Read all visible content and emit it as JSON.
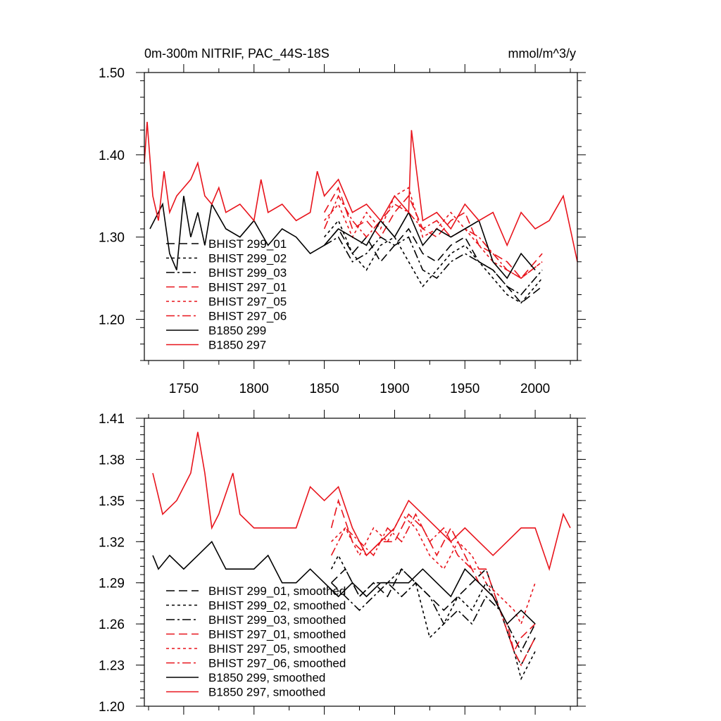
{
  "chart_data": [
    {
      "type": "line",
      "title": "0m-300m NITRIF, PAC_44S-18S",
      "units": "mmol/m^3/y",
      "xlabel": "",
      "ylabel": "",
      "xlim": [
        1722,
        2030
      ],
      "ylim": [
        1.15,
        1.5
      ],
      "xticks": [
        1750,
        1800,
        1850,
        1900,
        1950,
        2000
      ],
      "xtick_labels": [
        "1750",
        "1800",
        "1850",
        "1900",
        "1950",
        "2000"
      ],
      "yticks": [
        1.2,
        1.3,
        1.4,
        1.5
      ],
      "ytick_labels": [
        "1.20",
        "1.30",
        "1.40",
        "1.50"
      ],
      "legend_position": "bottom-left",
      "series": [
        {
          "name": "BHIST 299_01",
          "color": "#000000",
          "dash": "long",
          "x": [
            1850,
            1860,
            1870,
            1880,
            1890,
            1900,
            1910,
            1920,
            1930,
            1940,
            1950,
            1960,
            1970,
            1980,
            1990,
            2005
          ],
          "y": [
            1.29,
            1.31,
            1.28,
            1.3,
            1.27,
            1.29,
            1.31,
            1.28,
            1.27,
            1.29,
            1.3,
            1.27,
            1.26,
            1.24,
            1.22,
            1.24
          ]
        },
        {
          "name": "BHIST 299_02",
          "color": "#000000",
          "dash": "short",
          "x": [
            1850,
            1860,
            1870,
            1880,
            1890,
            1900,
            1910,
            1920,
            1930,
            1940,
            1950,
            1960,
            1970,
            1980,
            1990,
            2005
          ],
          "y": [
            1.3,
            1.32,
            1.28,
            1.26,
            1.29,
            1.3,
            1.27,
            1.24,
            1.26,
            1.28,
            1.29,
            1.27,
            1.25,
            1.23,
            1.22,
            1.25
          ]
        },
        {
          "name": "BHIST 299_03",
          "color": "#000000",
          "dash": "dashdot",
          "x": [
            1850,
            1860,
            1870,
            1880,
            1890,
            1900,
            1910,
            1920,
            1930,
            1940,
            1950,
            1960,
            1970,
            1980,
            1990,
            2005
          ],
          "y": [
            1.29,
            1.3,
            1.27,
            1.28,
            1.3,
            1.29,
            1.3,
            1.26,
            1.25,
            1.27,
            1.28,
            1.27,
            1.26,
            1.24,
            1.23,
            1.26
          ]
        },
        {
          "name": "BHIST 297_01",
          "color": "#e8141c",
          "dash": "long",
          "x": [
            1850,
            1860,
            1870,
            1880,
            1890,
            1900,
            1910,
            1920,
            1930,
            1940,
            1950,
            1960,
            1970,
            1980,
            1990,
            2005
          ],
          "y": [
            1.33,
            1.36,
            1.31,
            1.32,
            1.3,
            1.33,
            1.35,
            1.31,
            1.3,
            1.32,
            1.33,
            1.29,
            1.28,
            1.27,
            1.25,
            1.28
          ]
        },
        {
          "name": "BHIST 297_05",
          "color": "#e8141c",
          "dash": "short",
          "x": [
            1850,
            1860,
            1870,
            1880,
            1890,
            1900,
            1910,
            1920,
            1930,
            1940,
            1950,
            1960,
            1970,
            1980,
            1990,
            2005
          ],
          "y": [
            1.32,
            1.34,
            1.3,
            1.33,
            1.31,
            1.35,
            1.36,
            1.3,
            1.31,
            1.33,
            1.31,
            1.29,
            1.27,
            1.26,
            1.25,
            1.27
          ]
        },
        {
          "name": "BHIST 297_06",
          "color": "#e8141c",
          "dash": "dashdot",
          "x": [
            1850,
            1860,
            1870,
            1880,
            1890,
            1900,
            1910,
            1920,
            1930,
            1940,
            1950,
            1960,
            1970,
            1980,
            1990,
            2005
          ],
          "y": [
            1.31,
            1.35,
            1.32,
            1.3,
            1.32,
            1.34,
            1.33,
            1.31,
            1.32,
            1.3,
            1.31,
            1.3,
            1.28,
            1.26,
            1.25,
            1.27
          ]
        },
        {
          "name": "B1850 299",
          "color": "#000000",
          "dash": "solid",
          "x": [
            1726,
            1735,
            1740,
            1745,
            1750,
            1755,
            1760,
            1765,
            1770,
            1780,
            1790,
            1800,
            1810,
            1820,
            1830,
            1840,
            1850,
            1860,
            1870,
            1880,
            1890,
            1900,
            1910,
            1920,
            1930,
            1940,
            1950,
            1960,
            1970,
            1980,
            1990,
            2000
          ],
          "y": [
            1.31,
            1.34,
            1.28,
            1.26,
            1.35,
            1.3,
            1.33,
            1.29,
            1.34,
            1.31,
            1.3,
            1.32,
            1.29,
            1.31,
            1.3,
            1.28,
            1.29,
            1.31,
            1.3,
            1.29,
            1.32,
            1.3,
            1.33,
            1.29,
            1.31,
            1.3,
            1.31,
            1.32,
            1.27,
            1.25,
            1.28,
            1.26
          ]
        },
        {
          "name": "B1850 297",
          "color": "#e8141c",
          "dash": "solid",
          "x": [
            1722,
            1724,
            1728,
            1732,
            1736,
            1740,
            1745,
            1750,
            1755,
            1760,
            1765,
            1770,
            1775,
            1780,
            1790,
            1800,
            1805,
            1810,
            1820,
            1830,
            1840,
            1845,
            1850,
            1860,
            1870,
            1880,
            1890,
            1900,
            1910,
            1912,
            1920,
            1930,
            1940,
            1950,
            1960,
            1970,
            1980,
            1990,
            2000,
            2010,
            2020,
            2030
          ],
          "y": [
            1.39,
            1.44,
            1.35,
            1.32,
            1.38,
            1.33,
            1.35,
            1.36,
            1.37,
            1.39,
            1.35,
            1.34,
            1.36,
            1.33,
            1.34,
            1.32,
            1.37,
            1.33,
            1.34,
            1.32,
            1.33,
            1.38,
            1.35,
            1.37,
            1.33,
            1.34,
            1.32,
            1.35,
            1.33,
            1.43,
            1.32,
            1.33,
            1.31,
            1.34,
            1.32,
            1.33,
            1.29,
            1.33,
            1.31,
            1.32,
            1.35,
            1.27
          ]
        }
      ]
    },
    {
      "type": "line",
      "title": "",
      "xlabel": "",
      "ylabel": "",
      "xlim": [
        1722,
        2030
      ],
      "ylim": [
        1.2,
        1.41
      ],
      "xticks": [
        1750,
        1800,
        1850,
        1900,
        1950,
        2000
      ],
      "yticks": [
        1.2,
        1.23,
        1.26,
        1.29,
        1.32,
        1.35,
        1.38,
        1.41
      ],
      "ytick_labels": [
        "1.20",
        "1.23",
        "1.26",
        "1.29",
        "1.32",
        "1.35",
        "1.38",
        "1.41"
      ],
      "legend_position": "bottom-left",
      "series": [
        {
          "name": "BHIST 299_01, smoothed",
          "color": "#000000",
          "dash": "long",
          "x": [
            1855,
            1865,
            1875,
            1885,
            1895,
            1905,
            1915,
            1925,
            1935,
            1945,
            1955,
            1965,
            1975,
            1985,
            1990,
            1995,
            2000
          ],
          "y": [
            1.29,
            1.3,
            1.28,
            1.29,
            1.28,
            1.3,
            1.29,
            1.28,
            1.27,
            1.28,
            1.29,
            1.3,
            1.27,
            1.24,
            1.23,
            1.24,
            1.25
          ]
        },
        {
          "name": "BHIST 299_02, smoothed",
          "color": "#000000",
          "dash": "short",
          "x": [
            1855,
            1860,
            1865,
            1875,
            1885,
            1895,
            1905,
            1915,
            1920,
            1925,
            1935,
            1945,
            1955,
            1965,
            1975,
            1985,
            1990,
            1995,
            2000
          ],
          "y": [
            1.3,
            1.31,
            1.3,
            1.28,
            1.29,
            1.29,
            1.3,
            1.29,
            1.27,
            1.25,
            1.26,
            1.28,
            1.27,
            1.29,
            1.27,
            1.24,
            1.22,
            1.23,
            1.24
          ]
        },
        {
          "name": "BHIST 299_03, smoothed",
          "color": "#000000",
          "dash": "dashdot",
          "x": [
            1855,
            1865,
            1875,
            1885,
            1895,
            1905,
            1915,
            1925,
            1935,
            1945,
            1955,
            1965,
            1975,
            1985,
            1990,
            1995,
            2000
          ],
          "y": [
            1.29,
            1.28,
            1.27,
            1.28,
            1.29,
            1.28,
            1.29,
            1.28,
            1.26,
            1.27,
            1.26,
            1.28,
            1.27,
            1.25,
            1.24,
            1.25,
            1.26
          ]
        },
        {
          "name": "BHIST 297_01, smoothed",
          "color": "#e8141c",
          "dash": "long",
          "x": [
            1855,
            1860,
            1870,
            1880,
            1890,
            1900,
            1910,
            1920,
            1930,
            1940,
            1950,
            1960,
            1970,
            1980,
            1985,
            1990,
            2000
          ],
          "y": [
            1.33,
            1.35,
            1.32,
            1.31,
            1.32,
            1.32,
            1.34,
            1.33,
            1.31,
            1.33,
            1.31,
            1.29,
            1.28,
            1.26,
            1.24,
            1.25,
            1.26
          ]
        },
        {
          "name": "BHIST 297_05, smoothed",
          "color": "#e8141c",
          "dash": "short",
          "x": [
            1855,
            1865,
            1875,
            1885,
            1895,
            1905,
            1915,
            1925,
            1935,
            1945,
            1955,
            1965,
            1975,
            1985,
            1990,
            2000
          ],
          "y": [
            1.32,
            1.33,
            1.31,
            1.33,
            1.32,
            1.34,
            1.33,
            1.31,
            1.3,
            1.32,
            1.31,
            1.29,
            1.28,
            1.27,
            1.26,
            1.29
          ]
        },
        {
          "name": "BHIST 297_06, smoothed",
          "color": "#e8141c",
          "dash": "dashdot",
          "x": [
            1855,
            1865,
            1875,
            1885,
            1895,
            1905,
            1915,
            1925,
            1935,
            1945,
            1955,
            1965,
            1975,
            1985,
            1990,
            2000
          ],
          "y": [
            1.31,
            1.33,
            1.32,
            1.31,
            1.33,
            1.32,
            1.34,
            1.32,
            1.33,
            1.31,
            1.3,
            1.3,
            1.27,
            1.24,
            1.23,
            1.25
          ]
        },
        {
          "name": "B1850 299, smoothed",
          "color": "#000000",
          "dash": "solid",
          "x": [
            1728,
            1732,
            1740,
            1750,
            1760,
            1770,
            1780,
            1790,
            1800,
            1810,
            1820,
            1830,
            1840,
            1850,
            1860,
            1870,
            1880,
            1890,
            1900,
            1910,
            1920,
            1930,
            1940,
            1950,
            1960,
            1970,
            1980,
            1990,
            2000
          ],
          "y": [
            1.31,
            1.3,
            1.31,
            1.3,
            1.31,
            1.32,
            1.3,
            1.3,
            1.3,
            1.31,
            1.29,
            1.29,
            1.3,
            1.29,
            1.28,
            1.29,
            1.28,
            1.29,
            1.29,
            1.29,
            1.3,
            1.29,
            1.28,
            1.3,
            1.29,
            1.28,
            1.26,
            1.27,
            1.26
          ]
        },
        {
          "name": "B1850 297, smoothed",
          "color": "#e8141c",
          "dash": "solid",
          "x": [
            1728,
            1735,
            1745,
            1755,
            1760,
            1765,
            1770,
            1775,
            1785,
            1790,
            1800,
            1810,
            1820,
            1830,
            1840,
            1850,
            1860,
            1870,
            1880,
            1890,
            1900,
            1910,
            1920,
            1930,
            1940,
            1950,
            1960,
            1970,
            1980,
            1990,
            2000,
            2010,
            2020,
            2025
          ],
          "y": [
            1.37,
            1.34,
            1.35,
            1.37,
            1.4,
            1.37,
            1.33,
            1.34,
            1.37,
            1.34,
            1.33,
            1.33,
            1.33,
            1.33,
            1.36,
            1.35,
            1.36,
            1.33,
            1.31,
            1.32,
            1.33,
            1.35,
            1.34,
            1.33,
            1.32,
            1.33,
            1.32,
            1.31,
            1.32,
            1.33,
            1.33,
            1.3,
            1.34,
            1.33
          ]
        }
      ]
    }
  ]
}
